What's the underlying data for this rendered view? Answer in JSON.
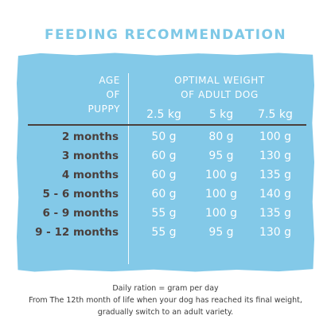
{
  "title": "FEEDING RECOMMENDATION",
  "table": {
    "col_header_age": [
      "AGE",
      "OF",
      "PUPPY"
    ],
    "col_header_weight": [
      "OPTIMAL WEIGHT",
      "OF ADULT DOG"
    ],
    "weights": [
      "2.5 kg",
      "5 kg",
      "7.5 kg"
    ],
    "rows": [
      {
        "age": "2 months",
        "values": [
          "50 g",
          "80 g",
          "100 g"
        ]
      },
      {
        "age": "3 months",
        "values": [
          "60 g",
          "95 g",
          "130 g"
        ]
      },
      {
        "age": "4 months",
        "values": [
          "60 g",
          "100 g",
          "135 g"
        ]
      },
      {
        "age": "5 - 6 months",
        "values": [
          "60 g",
          "100 g",
          "140 g"
        ]
      },
      {
        "age": "6 - 9 months",
        "values": [
          "55 g",
          "100 g",
          "135 g"
        ]
      },
      {
        "age": "9 - 12 months",
        "values": [
          "55 g",
          "95 g",
          "130 g"
        ]
      }
    ]
  },
  "footer": [
    "Daily ration = gram per day",
    "From The 12th month of life when your dog has reached its final weight,",
    "gradually switch to an adult variety."
  ],
  "colors": {
    "title": "#7ec8e6",
    "board": "#83c9e8",
    "row_label": "#4a3f3c",
    "cell_text": "#ffffff"
  }
}
